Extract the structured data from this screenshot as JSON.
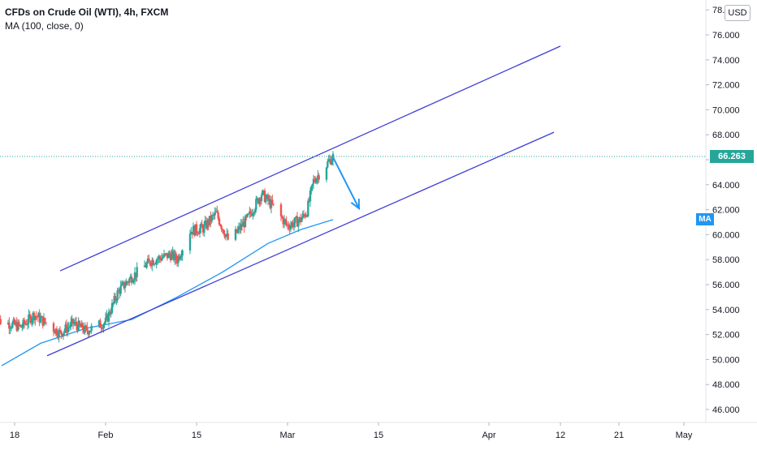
{
  "legend": {
    "title": "CFDs on Crude Oil (WTI), 4h, FXCM",
    "indicator": "MA (100, close, 0)"
  },
  "currency_button": "USD",
  "ma_badge": "MA",
  "colors": {
    "up": "#26a69a",
    "down": "#ef5350",
    "channel": "#3f3fd6",
    "ma": "#2196f3",
    "arrow": "#2196f3",
    "last_price": "#26a69a",
    "grid": "#f0f3fa",
    "axis_text": "#131722"
  },
  "chart_data": {
    "type": "candlestick",
    "title": "CFDs on Crude Oil (WTI), 4h, FXCM",
    "ylim": [
      45.2,
      78.2
    ],
    "y_ticks": [
      "46.000",
      "48.000",
      "50.000",
      "52.000",
      "54.000",
      "56.000",
      "58.000",
      "60.000",
      "62.000",
      "64.000",
      "66.000",
      "68.000",
      "70.000",
      "72.000",
      "74.000",
      "76.000",
      "78.000"
    ],
    "x_ticks": [
      {
        "label": "18",
        "date": "2021-01-18"
      },
      {
        "label": "Feb",
        "date": "2021-02-01"
      },
      {
        "label": "15",
        "date": "2021-02-15"
      },
      {
        "label": "Mar",
        "date": "2021-03-01"
      },
      {
        "label": "15",
        "date": "2021-03-15"
      },
      {
        "label": "Apr",
        "date": "2021-04-01"
      },
      {
        "label": "12",
        "date": "2021-04-12"
      },
      {
        "label": "21",
        "date": "2021-04-21"
      },
      {
        "label": "May",
        "date": "2021-05-01"
      }
    ],
    "x_range": [
      "2021-01-16",
      "2021-05-01"
    ],
    "last_price": "66.263",
    "last_price_value": 66.263,
    "price_path": [
      {
        "date": "2021-01-15",
        "price": 53.2
      },
      {
        "date": "2021-01-19",
        "price": 52.6
      },
      {
        "date": "2021-01-21",
        "price": 53.6
      },
      {
        "date": "2021-01-25",
        "price": 52.1
      },
      {
        "date": "2021-01-27",
        "price": 52.9
      },
      {
        "date": "2021-01-29",
        "price": 52.3
      },
      {
        "date": "2021-02-01",
        "price": 53.0
      },
      {
        "date": "2021-02-03",
        "price": 55.5
      },
      {
        "date": "2021-02-05",
        "price": 56.6
      },
      {
        "date": "2021-02-08",
        "price": 57.9
      },
      {
        "date": "2021-02-11",
        "price": 58.4
      },
      {
        "date": "2021-02-12",
        "price": 58.0
      },
      {
        "date": "2021-02-14",
        "price": 60.3
      },
      {
        "date": "2021-02-16",
        "price": 60.5
      },
      {
        "date": "2021-02-18",
        "price": 61.7
      },
      {
        "date": "2021-02-20",
        "price": 59.4
      },
      {
        "date": "2021-02-23",
        "price": 61.4
      },
      {
        "date": "2021-02-25",
        "price": 63.3
      },
      {
        "date": "2021-02-27",
        "price": 62.1
      },
      {
        "date": "2021-03-01",
        "price": 60.7
      },
      {
        "date": "2021-03-03",
        "price": 61.2
      },
      {
        "date": "2021-03-04",
        "price": 61.9
      },
      {
        "date": "2021-03-05",
        "price": 64.3
      },
      {
        "date": "2021-03-08",
        "price": 66.263
      }
    ],
    "ma_series": {
      "name": "MA (100, close, 0)",
      "points": [
        {
          "date": "2021-01-16",
          "price": 49.5
        },
        {
          "date": "2021-01-22",
          "price": 51.3
        },
        {
          "date": "2021-01-29",
          "price": 52.5
        },
        {
          "date": "2021-02-05",
          "price": 53.2
        },
        {
          "date": "2021-02-12",
          "price": 55.0
        },
        {
          "date": "2021-02-19",
          "price": 57.0
        },
        {
          "date": "2021-02-26",
          "price": 59.3
        },
        {
          "date": "2021-03-03",
          "price": 60.4
        },
        {
          "date": "2021-03-08",
          "price": 61.2
        }
      ]
    },
    "drawings": {
      "channel_upper": [
        {
          "date": "2021-01-25",
          "price": 57.1
        },
        {
          "date": "2021-04-12",
          "price": 75.1
        }
      ],
      "channel_lower": [
        {
          "date": "2021-01-23",
          "price": 50.3
        },
        {
          "date": "2021-04-11",
          "price": 68.2
        }
      ],
      "arrow": [
        {
          "date": "2021-03-08",
          "price": 66.2
        },
        {
          "date": "2021-03-12",
          "price": 62.1
        }
      ]
    }
  }
}
